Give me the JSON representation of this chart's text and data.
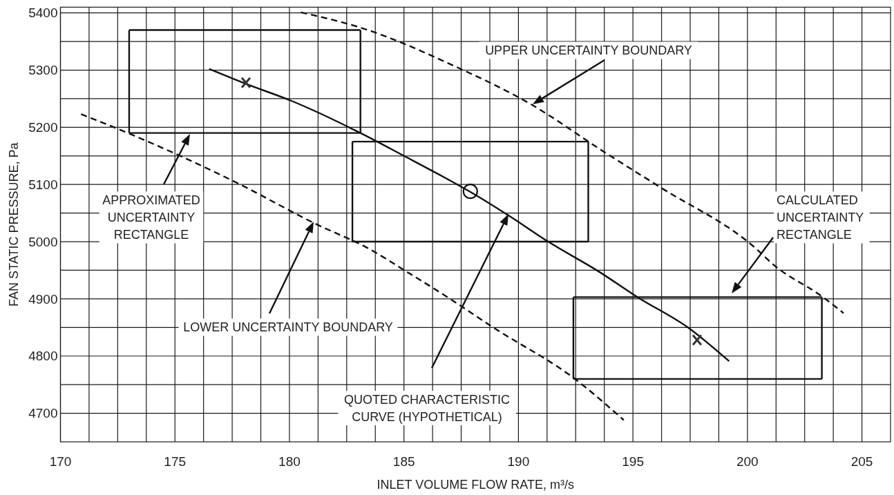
{
  "chart_data": {
    "type": "line",
    "xlabel": "INLET VOLUME FLOW RATE, m³/s",
    "ylabel": "FAN STATIC PRESSURE, Pa",
    "xlim": [
      170,
      206.25
    ],
    "ylim": [
      4650,
      5410
    ],
    "xticks": [
      170,
      {
        "value": 171.25,
        "label": null
      },
      {
        "value": 172.5,
        "label": null
      },
      {
        "value": 173.75,
        "label": null
      },
      175,
      {
        "value": 176.25,
        "label": null
      },
      {
        "value": 177.5,
        "label": null
      },
      {
        "value": 178.75,
        "label": null
      },
      180,
      {
        "value": 181.25,
        "label": null
      },
      {
        "value": 182.5,
        "label": null
      },
      {
        "value": 183.75,
        "label": null
      },
      185,
      {
        "value": 186.25,
        "label": null
      },
      {
        "value": 187.5,
        "label": null
      },
      {
        "value": 188.75,
        "label": null
      },
      190,
      {
        "value": 191.25,
        "label": null
      },
      {
        "value": 192.5,
        "label": null
      },
      {
        "value": 193.75,
        "label": null
      },
      195,
      {
        "value": 196.25,
        "label": null
      },
      {
        "value": 197.5,
        "label": null
      },
      {
        "value": 198.75,
        "label": null
      },
      200,
      {
        "value": 201.25,
        "label": null
      },
      {
        "value": 202.5,
        "label": null
      },
      {
        "value": 203.75,
        "label": null
      },
      205
    ],
    "yticks": [
      4700,
      {
        "value": 4750,
        "label": null
      },
      4800,
      {
        "value": 4850,
        "label": null
      },
      4900,
      {
        "value": 4950,
        "label": null
      },
      5000,
      {
        "value": 5050,
        "label": null
      },
      5100,
      {
        "value": 5150,
        "label": null
      },
      5200,
      {
        "value": 5250,
        "label": null
      },
      5300,
      {
        "value": 5350,
        "label": null
      },
      5400
    ],
    "grid": true,
    "series": [
      {
        "color": "#111111",
        "line_style": "solid",
        "x": [
          176.5,
          178.1,
          180.1,
          183.1,
          185,
          187.1,
          187.9,
          189.6,
          191.3,
          193.5,
          195.2,
          197.4,
          199.2
        ],
        "values": [
          5302,
          5276,
          5246,
          5190,
          5150,
          5105,
          5087,
          5045,
          5000,
          4948,
          4903,
          4850,
          4791
        ]
      },
      {
        "color": "#111111",
        "line_style": "dashed",
        "x": [
          180.5,
          183.2,
          187.1,
          190.6,
          193.7,
          196.2,
          200.4,
          201.1,
          203.3,
          204.2
        ],
        "values": [
          5401,
          5373,
          5309,
          5239,
          5158,
          5095,
          4987,
          4961,
          4903,
          4875
        ]
      },
      {
        "color": "#111111",
        "line_style": "dashed",
        "x": [
          170.9,
          173,
          177.7,
          181.1,
          183.5,
          185.1,
          186.9,
          188.9,
          192.5,
          194.6
        ],
        "values": [
          5223,
          5189,
          5103,
          5032,
          4987,
          4948,
          4903,
          4850,
          4759,
          4688
        ]
      },
      {
        "color": "#111111",
        "line_style": "solid",
        "x": [
          173,
          183.1
        ],
        "values": [
          5370,
          5370
        ]
      },
      {
        "color": "#111111",
        "line_style": "solid",
        "x": [
          173,
          183.1
        ],
        "values": [
          5190,
          5190
        ]
      },
      {
        "color": "#111111",
        "line_style": "solid",
        "x": [
          173,
          173
        ],
        "values": [
          5190,
          5370
        ]
      },
      {
        "color": "#111111",
        "line_style": "solid",
        "x": [
          183.1,
          183.1
        ],
        "values": [
          5190,
          5370
        ]
      },
      {
        "color": "#111111",
        "line_style": "solid",
        "x": [
          182.75,
          193.05
        ],
        "values": [
          5175,
          5175
        ]
      },
      {
        "color": "#111111",
        "line_style": "solid",
        "x": [
          182.75,
          193.05
        ],
        "values": [
          5000,
          5000
        ]
      },
      {
        "color": "#111111",
        "line_style": "solid",
        "x": [
          182.75,
          182.75
        ],
        "values": [
          5000,
          5175
        ]
      },
      {
        "color": "#111111",
        "line_style": "solid",
        "x": [
          193.05,
          193.05
        ],
        "values": [
          5000,
          5175
        ]
      },
      {
        "color": "#111111",
        "line_style": "solid",
        "x": [
          192.4,
          203.25
        ],
        "values": [
          4903,
          4903
        ]
      },
      {
        "color": "#111111",
        "line_style": "solid",
        "x": [
          192.4,
          203.25
        ],
        "values": [
          4760,
          4760
        ]
      },
      {
        "color": "#111111",
        "line_style": "solid",
        "x": [
          192.4,
          192.4
        ],
        "values": [
          4760,
          4903
        ]
      },
      {
        "color": "#111111",
        "line_style": "solid",
        "x": [
          203.25,
          203.25
        ],
        "values": [
          4760,
          4903
        ]
      },
      {
        "type": "scatter",
        "color": "#333333",
        "marker": "cross",
        "x": [
          178.1,
          197.8
        ],
        "values": [
          5278,
          4828
        ]
      },
      {
        "type": "scatter",
        "color": "#111111",
        "marker": "circle",
        "x": [
          187.9
        ],
        "values": [
          5088
        ]
      }
    ],
    "annotations": [
      "UPPER UNCERTAINTY BOUNDARY",
      "APPROXIMATED\nUNCERTAINTY\nRECTANGLE",
      "LOWER UNCERTAINTY BOUNDARY",
      "QUOTED CHARACTERISTIC\nCURVE (HYPOTHETICAL)",
      "CALCULATED\nUNCERTAINTY\nRECTANGLE"
    ]
  }
}
